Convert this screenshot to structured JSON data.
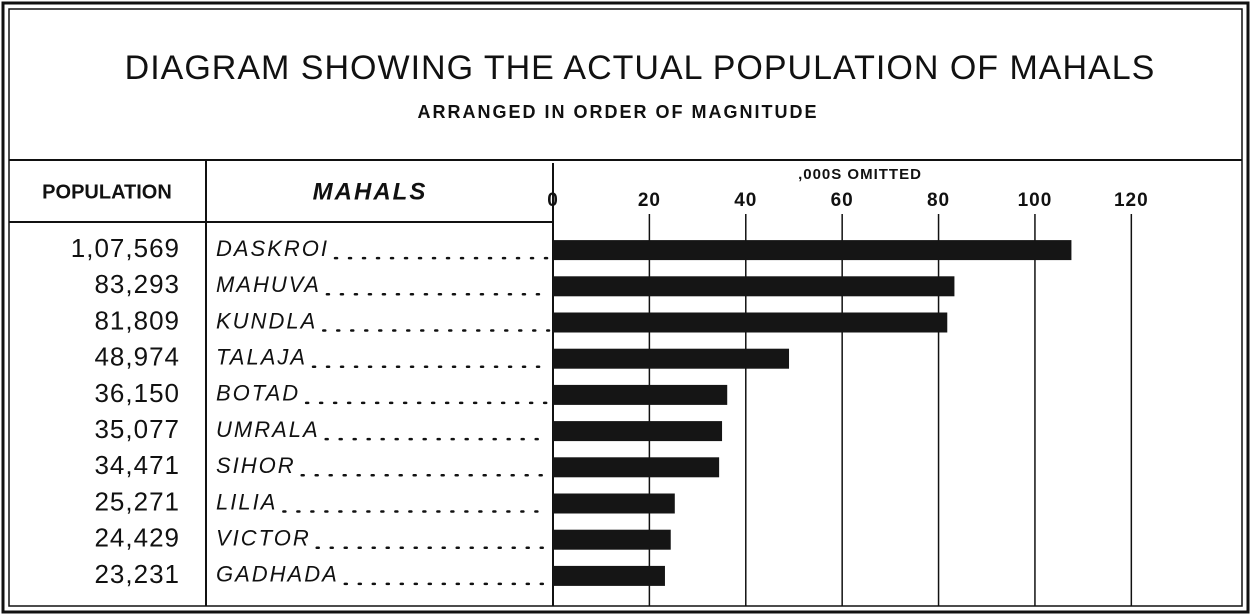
{
  "chart_data": {
    "type": "bar",
    "title": "DIAGRAM SHOWING THE ACTUAL POPULATION OF MAHALS",
    "subtitle": "ARRANGED IN ORDER OF MAGNITUDE",
    "population_header": "POPULATION",
    "category_header": "MAHALS",
    "x_label": ",000S OMITTED",
    "categories": [
      "DASKROI",
      "MAHUVA",
      "KUNDLA",
      "TALAJA",
      "BOTAD",
      "UMRALA",
      "SIHOR",
      "LILIA",
      "VICTOR",
      "GADHADA"
    ],
    "values": [
      107.569,
      83.293,
      81.809,
      48.974,
      36.15,
      35.077,
      34.471,
      25.271,
      24.429,
      23.231
    ],
    "value_labels": [
      "1,07,569",
      "83,293",
      "81,809",
      "48,974",
      "36,150",
      "35,077",
      "34,471",
      "25,271",
      "24,429",
      "23,231"
    ],
    "color": "#151515",
    "xlim": [
      0,
      144
    ],
    "xticks": [
      0,
      20,
      40,
      60,
      80,
      100,
      120
    ],
    "grid": true
  }
}
